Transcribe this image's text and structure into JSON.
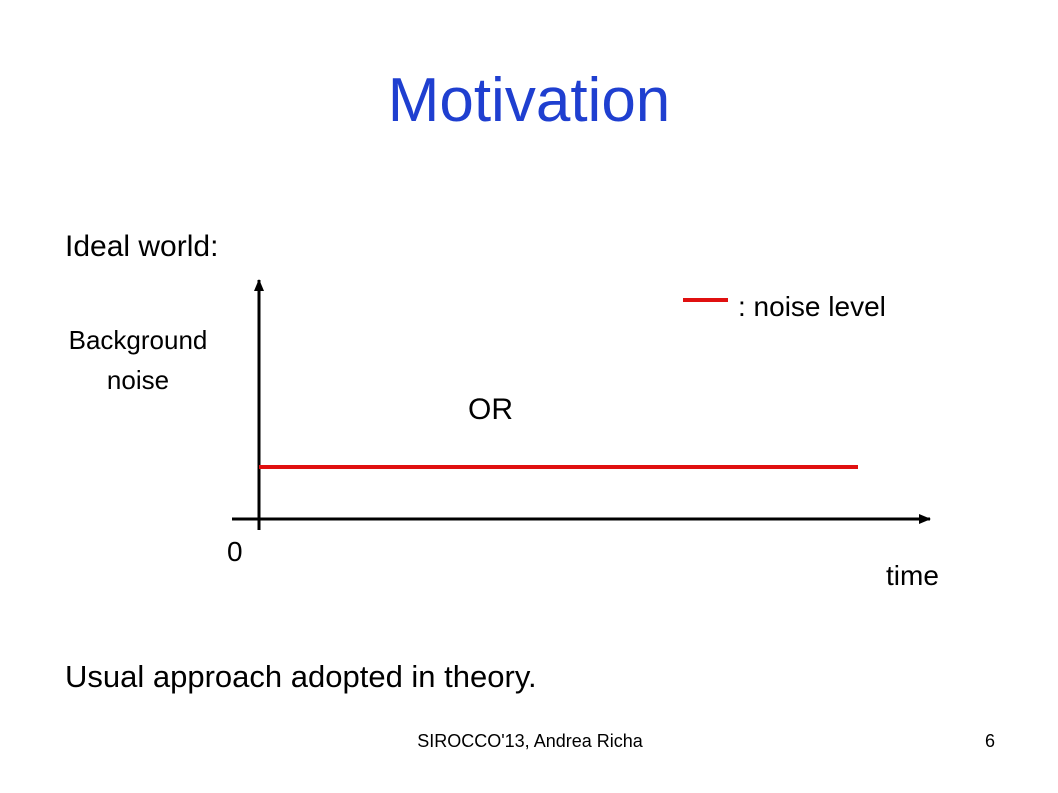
{
  "slide": {
    "title": "Motivation",
    "subtitle": "Ideal world:",
    "diagram": {
      "y_axis_label": "Background noise",
      "origin_label": "0",
      "x_axis_label": "time",
      "legend_label": ": noise level",
      "middle_text": "OR"
    },
    "caption": "Usual approach adopted in theory.",
    "footer": "SIROCCO'13, Andrea Richa",
    "page_number": "6"
  }
}
